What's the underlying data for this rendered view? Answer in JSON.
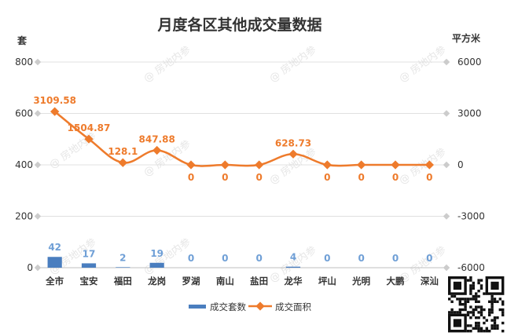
{
  "chart_data": {
    "type": "bar+line",
    "title": "月度各区其他成交量数据",
    "left_axis_unit": "套",
    "right_axis_unit": "平方米",
    "left_ylim": [
      0,
      800
    ],
    "left_ticks": [
      0,
      200,
      400,
      600,
      800
    ],
    "right_ylim": [
      -6000,
      6000
    ],
    "right_ticks": [
      -6000,
      -3000,
      0,
      3000,
      6000
    ],
    "grid": true,
    "legend_position": "bottom",
    "categories": [
      "全市",
      "宝安",
      "福田",
      "龙岗",
      "罗湖",
      "南山",
      "盐田",
      "龙华",
      "坪山",
      "光明",
      "大鹏",
      "深汕"
    ],
    "series": [
      {
        "name": "成交套数",
        "type": "bar",
        "axis": "left",
        "color": "#4a7ebf",
        "label_color": "#6f9fd6",
        "values": [
          42,
          17,
          2,
          19,
          0,
          0,
          0,
          4,
          0,
          0,
          0,
          0
        ],
        "labels": [
          "42",
          "17",
          "2",
          "19",
          "0",
          "0",
          "0",
          "4",
          "0",
          "0",
          "0",
          "0"
        ]
      },
      {
        "name": "成交面积",
        "type": "line",
        "axis": "right",
        "color": "#ee7b2c",
        "values": [
          3109.58,
          1504.87,
          128.1,
          847.88,
          0,
          0,
          0,
          628.73,
          0,
          0,
          0,
          0
        ],
        "labels": [
          "3109.58",
          "1504.87",
          "128.1",
          "847.88",
          "0",
          "0",
          "0",
          "628.73",
          "0",
          "0",
          "0",
          "0"
        ]
      }
    ],
    "watermark": "房地内参"
  }
}
